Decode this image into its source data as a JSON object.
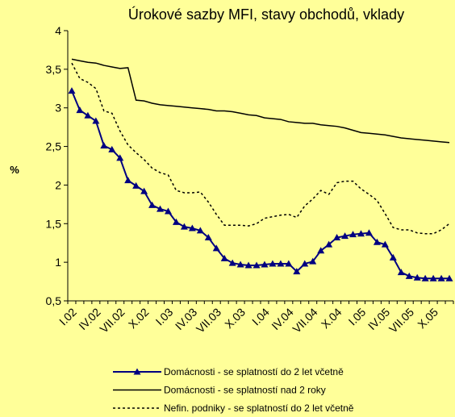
{
  "chart_data": {
    "type": "line",
    "title": "Úrokové sazby MFI, stavy obchodů, vklady",
    "y_label": "%",
    "categories": [
      "I.02",
      null,
      null,
      "IV.02",
      null,
      null,
      "VII.02",
      null,
      null,
      "X.02",
      null,
      null,
      "I.03",
      null,
      null,
      "IV.03",
      null,
      null,
      "VII.03",
      null,
      null,
      "X.03",
      null,
      null,
      "I.04",
      null,
      null,
      "IV.04",
      null,
      null,
      "VII.04",
      null,
      null,
      "X.04",
      null,
      null,
      "I.05",
      null,
      null,
      "IV.05",
      null,
      null,
      "VII.05",
      null,
      null,
      "X.05",
      null,
      null
    ],
    "series": [
      {
        "name": "Domácnosti - se splatností do 2 let včetně",
        "color": "#000080",
        "marker": "triangle",
        "dash": "solid",
        "values": [
          3.22,
          2.97,
          2.9,
          2.83,
          2.51,
          2.46,
          2.35,
          2.06,
          1.99,
          1.92,
          1.74,
          1.69,
          1.66,
          1.52,
          1.46,
          1.44,
          1.41,
          1.32,
          1.18,
          1.05,
          0.99,
          0.97,
          0.96,
          0.96,
          0.97,
          0.98,
          0.98,
          0.98,
          0.88,
          0.98,
          1.01,
          1.15,
          1.23,
          1.32,
          1.34,
          1.36,
          1.37,
          1.38,
          1.26,
          1.23,
          1.06,
          0.87,
          0.82,
          0.8,
          0.79,
          0.79,
          0.79,
          0.79
        ]
      },
      {
        "name": "Domácnosti - se splatností nad 2 roky",
        "color": "#000000",
        "marker": "none",
        "dash": "solid",
        "values": [
          3.63,
          3.61,
          3.59,
          3.58,
          3.55,
          3.53,
          3.51,
          3.52,
          3.1,
          3.09,
          3.06,
          3.04,
          3.03,
          3.02,
          3.01,
          3.0,
          2.99,
          2.98,
          2.96,
          2.96,
          2.95,
          2.93,
          2.91,
          2.9,
          2.87,
          2.86,
          2.85,
          2.82,
          2.81,
          2.8,
          2.8,
          2.78,
          2.77,
          2.76,
          2.74,
          2.71,
          2.68,
          2.67,
          2.66,
          2.65,
          2.63,
          2.61,
          2.6,
          2.59,
          2.58,
          2.57,
          2.56,
          2.55
        ]
      },
      {
        "name": "Nefin. podniky - se splatností do 2 let včetně",
        "color": "#000000",
        "marker": "none",
        "dash": "dashed",
        "values": [
          3.58,
          3.38,
          3.33,
          3.25,
          2.96,
          2.93,
          2.7,
          2.52,
          2.42,
          2.33,
          2.22,
          2.16,
          2.13,
          1.93,
          1.9,
          1.9,
          1.91,
          1.78,
          1.62,
          1.48,
          1.48,
          1.48,
          1.47,
          1.5,
          1.57,
          1.59,
          1.61,
          1.62,
          1.58,
          1.73,
          1.82,
          1.93,
          1.88,
          2.03,
          2.05,
          2.05,
          1.95,
          1.88,
          1.8,
          1.63,
          1.45,
          1.42,
          1.42,
          1.38,
          1.37,
          1.37,
          1.42,
          1.5
        ]
      }
    ],
    "ylim": [
      0.5,
      4
    ],
    "yticks": [
      {
        "value": 0.5,
        "label": "0,5"
      },
      1,
      {
        "value": 1.5,
        "label": "1,5"
      },
      2,
      {
        "value": 2.5,
        "label": "2,5"
      },
      3,
      {
        "value": 3.5,
        "label": "3,5"
      },
      4
    ],
    "grid": false
  }
}
